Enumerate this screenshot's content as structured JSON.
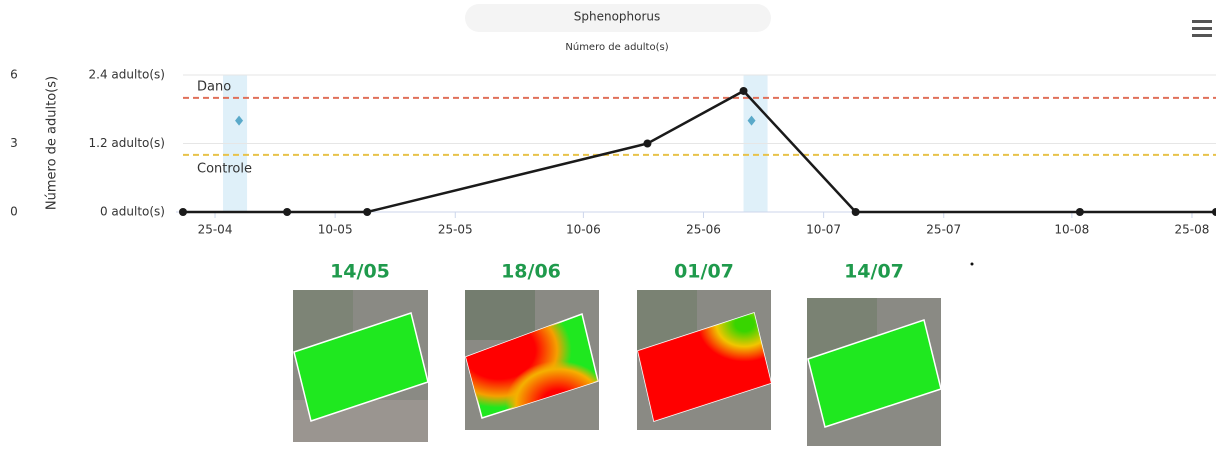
{
  "chart_data": {
    "type": "line",
    "title": "Sphenophorus",
    "subtitle": "Número de adulto(s)",
    "y2_label": "Número de adulto(s)",
    "x": [
      "21-04",
      "04-05",
      "14-05",
      "18-06",
      "30-06",
      "14-07",
      "11-08",
      "28-08"
    ],
    "series": [
      {
        "color": "#1a1a1a",
        "values": [
          0,
          0,
          0,
          1.2,
          2.12,
          0,
          0,
          0
        ]
      }
    ],
    "markers": {
      "x": [
        "28-04",
        "01-07"
      ],
      "values": [
        1.6,
        1.6
      ],
      "color": "#5aa9c9"
    },
    "bands": [
      {
        "from": "26-04",
        "to": "29-04"
      },
      {
        "from": "30-06",
        "to": "03-07"
      }
    ],
    "thresholds": [
      {
        "label": "Dano",
        "value": 2.0,
        "color": "#e0705a"
      },
      {
        "label": "Controle",
        "value": 1.0,
        "color": "#e8c24a"
      }
    ],
    "xlim": [
      "21-04",
      "28-08"
    ],
    "xticks": [
      "25-04",
      "10-05",
      "25-05",
      "10-06",
      "25-06",
      "10-07",
      "25-07",
      "10-08",
      "25-08"
    ],
    "ylim": [
      0,
      2.4
    ],
    "yticks": [
      {
        "value": 0,
        "label": "0 adulto(s)"
      },
      {
        "value": 1.2,
        "label": "1.2 adulto(s)"
      },
      {
        "value": 2.4,
        "label": "2.4 adulto(s)"
      }
    ],
    "y2lim": [
      0,
      6
    ],
    "y2ticks": [
      0,
      3,
      6
    ],
    "grid": true,
    "snapshots": [
      "14/05",
      "18/06",
      "01/07",
      "14/07"
    ]
  }
}
